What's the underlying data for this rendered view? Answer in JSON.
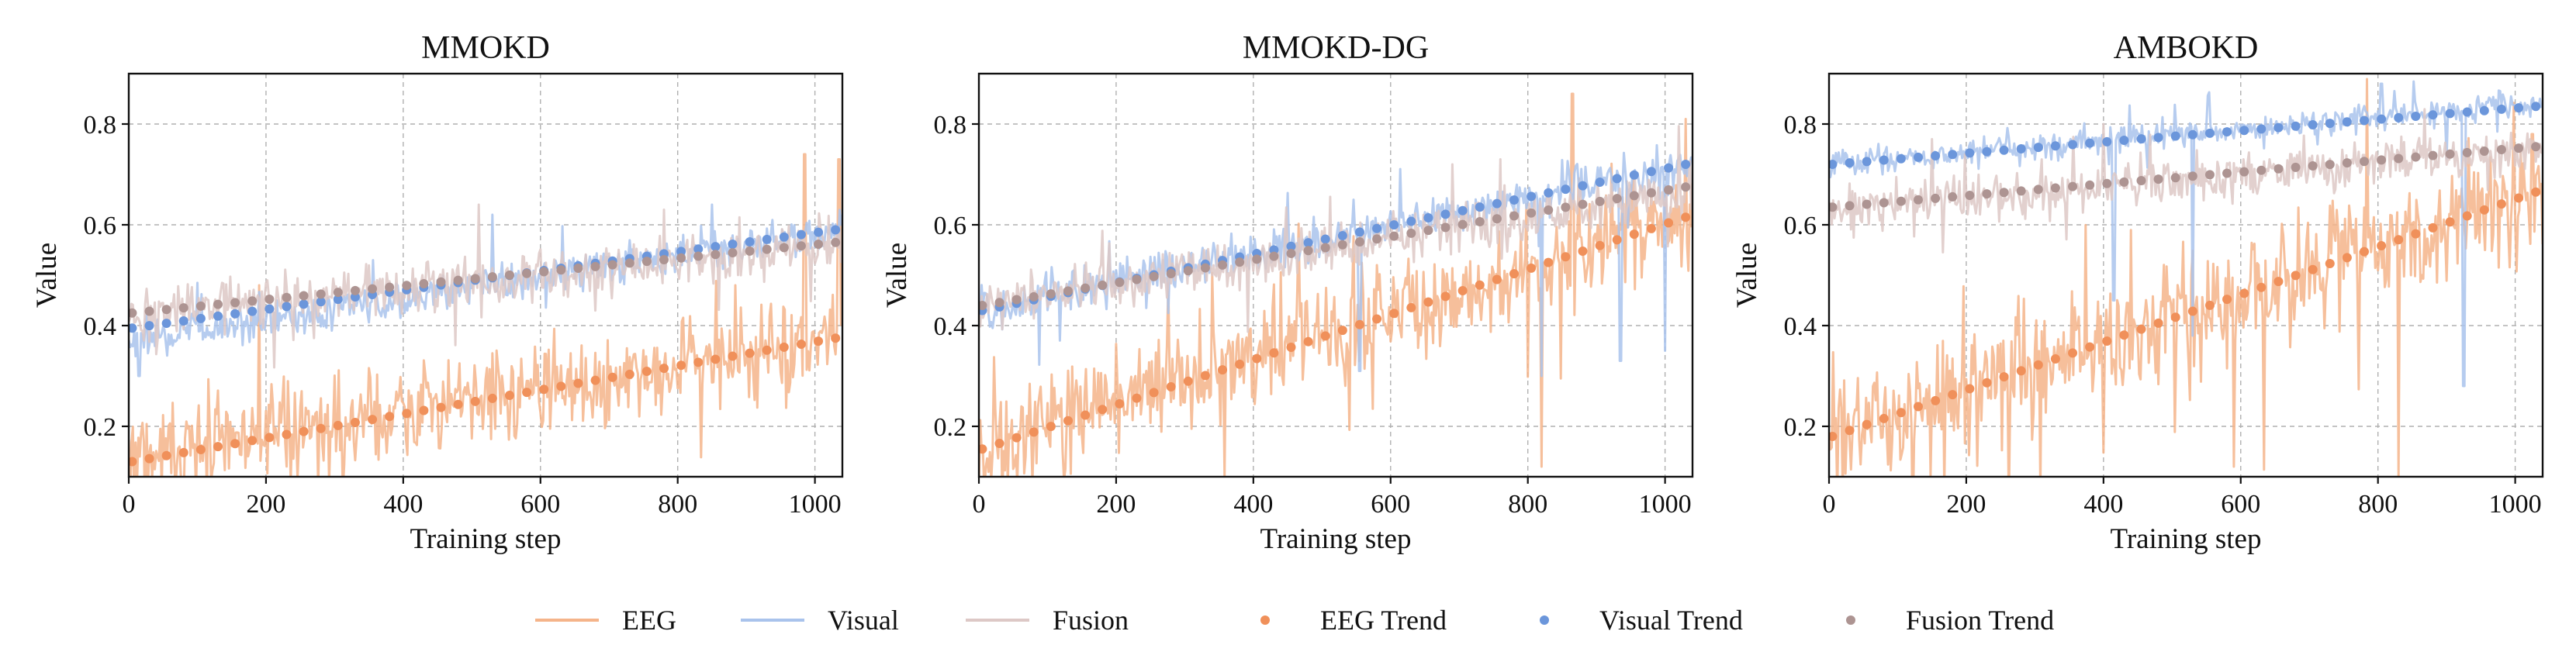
{
  "chart_data": [
    {
      "type": "line",
      "title": "MMOKD",
      "xlabel": "Training step",
      "ylabel": "Value",
      "xlim": [
        0,
        1040
      ],
      "ylim": [
        0.1,
        0.9
      ],
      "xticks": [
        0,
        200,
        400,
        600,
        800,
        1000
      ],
      "yticks": [
        0.2,
        0.4,
        0.6,
        0.8
      ],
      "grid": true,
      "series": [
        {
          "name": "EEG",
          "kind": "raw",
          "color": "#f5b48a",
          "start": 0.14,
          "end": 0.37,
          "noise": 0.13,
          "spikes": [
            [
              985,
              0.74
            ],
            [
              1035,
              0.73
            ],
            [
              190,
              0.48
            ]
          ]
        },
        {
          "name": "Visual",
          "kind": "raw",
          "color": "#a9c3ec",
          "start": 0.37,
          "end": 0.59,
          "noise": 0.05,
          "spikes": [
            [
              530,
              0.62
            ],
            [
              850,
              0.64
            ],
            [
              15,
              0.3
            ]
          ]
        },
        {
          "name": "Fusion",
          "kind": "raw",
          "color": "#ddc8c6",
          "start": 0.42,
          "end": 0.56,
          "noise": 0.07,
          "spikes": [
            [
              510,
              0.64
            ],
            [
              780,
              0.63
            ]
          ]
        },
        {
          "name": "EEG Trend",
          "kind": "trend",
          "color": "#f0905a",
          "start": 0.13,
          "end": 0.375
        },
        {
          "name": "Visual Trend",
          "kind": "trend",
          "color": "#6b96db",
          "start": 0.395,
          "end": 0.59
        },
        {
          "name": "Fusion Trend",
          "kind": "trend",
          "color": "#ad9492",
          "start": 0.425,
          "end": 0.565
        }
      ]
    },
    {
      "type": "line",
      "title": "MMOKD-DG",
      "xlabel": "Training step",
      "ylabel": "Value",
      "xlim": [
        0,
        1040
      ],
      "ylim": [
        0.1,
        0.9
      ],
      "xticks": [
        0,
        200,
        400,
        600,
        800,
        1000
      ],
      "yticks": [
        0.2,
        0.4,
        0.6,
        0.8
      ],
      "grid": true,
      "series": [
        {
          "name": "EEG",
          "kind": "raw",
          "color": "#f5b48a",
          "start": 0.16,
          "end": 0.61,
          "noise": 0.14,
          "spikes": [
            [
              865,
              0.86
            ],
            [
              1030,
              0.81
            ],
            [
              820,
              0.12
            ]
          ]
        },
        {
          "name": "Visual",
          "kind": "raw",
          "color": "#a9c3ec",
          "start": 0.43,
          "end": 0.72,
          "noise": 0.06,
          "spikes": [
            [
              555,
              0.31
            ],
            [
              820,
              0.3
            ],
            [
              935,
              0.33
            ],
            [
              1000,
              0.35
            ]
          ]
        },
        {
          "name": "Fusion",
          "kind": "raw",
          "color": "#ddc8c6",
          "start": 0.44,
          "end": 0.67,
          "noise": 0.07,
          "spikes": [
            [
              760,
              0.73
            ],
            [
              690,
              0.72
            ]
          ]
        },
        {
          "name": "EEG Trend",
          "kind": "trend",
          "color": "#f0905a",
          "start": 0.155,
          "end": 0.615
        },
        {
          "name": "Visual Trend",
          "kind": "trend",
          "color": "#6b96db",
          "start": 0.43,
          "end": 0.72
        },
        {
          "name": "Fusion Trend",
          "kind": "trend",
          "color": "#ad9492",
          "start": 0.44,
          "end": 0.675
        }
      ]
    },
    {
      "type": "line",
      "title": "AMBOKD",
      "xlabel": "Training step",
      "ylabel": "Value",
      "xlim": [
        0,
        1040
      ],
      "ylim": [
        0.1,
        0.9
      ],
      "xticks": [
        0,
        200,
        400,
        600,
        800,
        1000
      ],
      "yticks": [
        0.2,
        0.4,
        0.6,
        0.8
      ],
      "grid": true,
      "series": [
        {
          "name": "EEG",
          "kind": "raw",
          "color": "#f5b48a",
          "start": 0.18,
          "end": 0.66,
          "noise": 0.17,
          "spikes": [
            [
              590,
              0.12
            ],
            [
              830,
              0.1
            ],
            [
              1025,
              0.78
            ]
          ]
        },
        {
          "name": "Visual",
          "kind": "raw",
          "color": "#a9c3ec",
          "start": 0.72,
          "end": 0.84,
          "noise": 0.04,
          "spikes": [
            [
              415,
              0.45
            ],
            [
              530,
              0.38
            ],
            [
              925,
              0.28
            ],
            [
              805,
              0.88
            ]
          ]
        },
        {
          "name": "Fusion",
          "kind": "raw",
          "color": "#ddc8c6",
          "start": 0.63,
          "end": 0.75,
          "noise": 0.06,
          "spikes": [
            [
              150,
              0.77
            ],
            [
              400,
              0.8
            ]
          ]
        },
        {
          "name": "EEG Trend",
          "kind": "trend",
          "color": "#f0905a",
          "start": 0.18,
          "end": 0.665
        },
        {
          "name": "Visual Trend",
          "kind": "trend",
          "color": "#6b96db",
          "start": 0.72,
          "end": 0.835
        },
        {
          "name": "Fusion Trend",
          "kind": "trend",
          "color": "#ad9492",
          "start": 0.635,
          "end": 0.755
        }
      ]
    }
  ],
  "legend": {
    "position": "bottom-center",
    "items": [
      {
        "label": "EEG",
        "marker": "line",
        "color": "#f5b48a"
      },
      {
        "label": "Visual",
        "marker": "line",
        "color": "#a9c3ec"
      },
      {
        "label": "Fusion",
        "marker": "line",
        "color": "#ddc8c6"
      },
      {
        "label": "EEG Trend",
        "marker": "dot",
        "color": "#f0905a"
      },
      {
        "label": "Visual Trend",
        "marker": "dot",
        "color": "#6b96db"
      },
      {
        "label": "Fusion Trend",
        "marker": "dot",
        "color": "#ad9492"
      }
    ]
  }
}
